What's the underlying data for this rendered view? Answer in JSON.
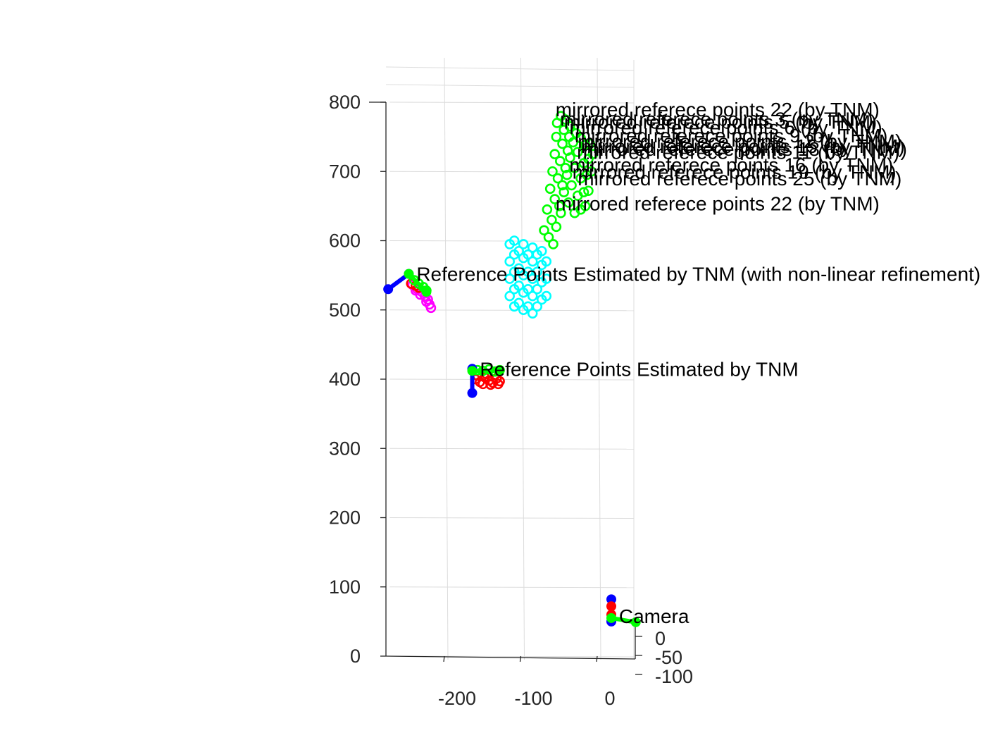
{
  "chart_data": {
    "type": "scatter",
    "title": "",
    "xlabel": "",
    "ylabel": "",
    "zlabel": "",
    "xlim": [
      -290,
      30
    ],
    "ylim": [
      0,
      800
    ],
    "zlim": [
      -100,
      0
    ],
    "grid": true,
    "x_ticks": [
      -200,
      -100,
      0
    ],
    "y_ticks": [
      0,
      100,
      200,
      300,
      400,
      500,
      600,
      700,
      800
    ],
    "z_ticks": [
      0,
      -50,
      -100
    ],
    "colors": {
      "blue": "#0000ff",
      "red": "#ff0000",
      "green": "#00ff00",
      "cyan": "#00ffff",
      "magenta": "#ff00ff"
    },
    "frames": [
      {
        "name": "camera-frame",
        "label": "Camera",
        "origin": [
          0,
          67
        ],
        "axes": [
          {
            "color": "blue",
            "from": [
              0,
              50
            ],
            "to": [
              0,
              82
            ]
          },
          {
            "color": "red",
            "from": [
              0,
              60
            ],
            "to": [
              0,
              72
            ]
          },
          {
            "color": "green",
            "from": [
              0,
              55
            ],
            "to": [
              32,
              49
            ]
          }
        ],
        "label_at": [
          10,
          58
        ]
      },
      {
        "name": "tnm-frame",
        "label": "Reference Points Estimated by TNM",
        "origin": [
          -182,
          405
        ],
        "axes": [
          {
            "color": "blue",
            "from": [
              -182,
              380
            ],
            "to": [
              -182,
              415
            ]
          },
          {
            "color": "green",
            "from": [
              -182,
              412
            ],
            "to": [
              -148,
              412
            ]
          }
        ],
        "label_at": [
          -172,
          415
        ]
      },
      {
        "name": "tnm-nonlinear-frame",
        "label": "Reference Points Estimated by TNM (with non-linear refinement)",
        "origin": [
          -265,
          540
        ],
        "axes": [
          {
            "color": "blue",
            "from": [
              -292,
              530
            ],
            "to": [
              -265,
              552
            ]
          },
          {
            "color": "green",
            "from": [
              -265,
              552
            ],
            "to": [
              -242,
              526
            ]
          }
        ],
        "label_at": [
          -255,
          552
        ]
      }
    ],
    "series": [
      {
        "color": "red",
        "points": [
          [
            -178,
            400
          ],
          [
            -172,
            396
          ],
          [
            -166,
            403
          ],
          [
            -160,
            398
          ],
          [
            -155,
            395
          ],
          [
            -150,
            401
          ],
          [
            -146,
            397
          ],
          [
            -175,
            405
          ],
          [
            -163,
            407
          ],
          [
            -152,
            406
          ],
          [
            -168,
            393
          ],
          [
            -158,
            392
          ],
          [
            -148,
            393
          ]
        ]
      },
      {
        "color": "green",
        "points": [
          [
            -175,
            413
          ],
          [
            -168,
            412
          ],
          [
            -160,
            414
          ],
          [
            -152,
            411
          ],
          [
            -146,
            413
          ]
        ]
      },
      {
        "color": "magenta",
        "points": [
          [
            -260,
            536
          ],
          [
            -254,
            530
          ],
          [
            -248,
            526
          ],
          [
            -244,
            520
          ],
          [
            -240,
            515
          ],
          [
            -238,
            508
          ],
          [
            -236,
            503
          ],
          [
            -250,
            522
          ],
          [
            -242,
            512
          ],
          [
            -256,
            528
          ]
        ]
      },
      {
        "color": "red",
        "points": [
          [
            -262,
            538
          ],
          [
            -256,
            535
          ],
          [
            -252,
            532
          ]
        ]
      },
      {
        "color": "green",
        "points": [
          [
            -258,
            543
          ],
          [
            -252,
            538
          ],
          [
            -246,
            533
          ],
          [
            -242,
            528
          ]
        ]
      },
      {
        "color": "cyan",
        "points": [
          [
            -133,
            520
          ],
          [
            -133,
            545
          ],
          [
            -133,
            570
          ],
          [
            -133,
            595
          ],
          [
            -127,
            505
          ],
          [
            -127,
            530
          ],
          [
            -127,
            555
          ],
          [
            -127,
            580
          ],
          [
            -127,
            600
          ],
          [
            -121,
            510
          ],
          [
            -121,
            535
          ],
          [
            -121,
            560
          ],
          [
            -121,
            585
          ],
          [
            -115,
            500
          ],
          [
            -115,
            525
          ],
          [
            -115,
            550
          ],
          [
            -115,
            575
          ],
          [
            -115,
            595
          ],
          [
            -109,
            505
          ],
          [
            -109,
            530
          ],
          [
            -109,
            555
          ],
          [
            -109,
            580
          ],
          [
            -103,
            495
          ],
          [
            -103,
            520
          ],
          [
            -103,
            545
          ],
          [
            -103,
            570
          ],
          [
            -103,
            590
          ],
          [
            -97,
            505
          ],
          [
            -97,
            530
          ],
          [
            -97,
            555
          ],
          [
            -97,
            580
          ],
          [
            -91,
            515
          ],
          [
            -91,
            540
          ],
          [
            -91,
            565
          ],
          [
            -91,
            585
          ],
          [
            -85,
            520
          ],
          [
            -85,
            545
          ],
          [
            -85,
            570
          ]
        ]
      },
      {
        "color": "green",
        "points": [
          [
            -88,
            615
          ],
          [
            -84,
            645
          ],
          [
            -80,
            675
          ],
          [
            -77,
            700
          ],
          [
            -74,
            725
          ],
          [
            -72,
            750
          ],
          [
            -71,
            770
          ],
          [
            -82,
            605
          ],
          [
            -78,
            630
          ],
          [
            -74,
            660
          ],
          [
            -70,
            690
          ],
          [
            -67,
            715
          ],
          [
            -64,
            740
          ],
          [
            -62,
            760
          ],
          [
            -76,
            595
          ],
          [
            -72,
            620
          ],
          [
            -68,
            650
          ],
          [
            -64,
            680
          ],
          [
            -60,
            705
          ],
          [
            -57,
            730
          ],
          [
            -55,
            750
          ],
          [
            -66,
            640
          ],
          [
            -62,
            670
          ],
          [
            -58,
            695
          ],
          [
            -54,
            720
          ],
          [
            -50,
            742
          ],
          [
            -56,
            655
          ],
          [
            -52,
            680
          ],
          [
            -48,
            705
          ],
          [
            -44,
            728
          ],
          [
            -48,
            640
          ],
          [
            -44,
            665
          ],
          [
            -40,
            690
          ],
          [
            -36,
            712
          ],
          [
            -40,
            645
          ],
          [
            -36,
            670
          ],
          [
            -32,
            695
          ],
          [
            -30,
            718
          ],
          [
            -28,
            740
          ],
          [
            -34,
            650
          ],
          [
            -30,
            672
          ],
          [
            -26,
            700
          ],
          [
            -24,
            725
          ],
          [
            -66,
            780
          ],
          [
            -60,
            775
          ],
          [
            -54,
            765
          ],
          [
            -46,
            755
          ],
          [
            -40,
            748
          ],
          [
            -34,
            738
          ]
        ]
      }
    ],
    "annotations": [
      {
        "text": "mirrored referece points 22 (by TNM)",
        "at": [
          -73,
          790
        ]
      },
      {
        "text": "mirrored referece points 3 (by TNM)",
        "at": [
          -67,
          776
        ]
      },
      {
        "text": "mirrored referece points 5 (by TNM)",
        "at": [
          -62,
          772
        ]
      },
      {
        "text": "mirrored referece points 6 (by TNM)",
        "at": [
          -55,
          764
        ]
      },
      {
        "text": "mirrored referece points 9 (by TNM)",
        "at": [
          -48,
          752
        ]
      },
      {
        "text": "mirrored referece points 12 (by TNM)",
        "at": [
          -44,
          744
        ]
      },
      {
        "text": "mirrored referece points 15 (by TNM)",
        "at": [
          -40,
          737
        ]
      },
      {
        "text": "mirrored referece points 18 (by TNM)",
        "at": [
          -37,
          733
        ]
      },
      {
        "text": "mirrored referece points 11 (by TNM)",
        "at": [
          -45,
          728
        ]
      },
      {
        "text": "mirrored referece points 16 (by TNM)",
        "at": [
          -55,
          710
        ]
      },
      {
        "text": "mirrored referece points 19 (by TNM)",
        "at": [
          -51,
          700
        ]
      },
      {
        "text": "mirrored referece points 25 (by TNM)",
        "at": [
          -44,
          690
        ]
      },
      {
        "text": "mirrored referece points 22 (by TNM)",
        "at": [
          -73,
          654
        ]
      }
    ]
  }
}
